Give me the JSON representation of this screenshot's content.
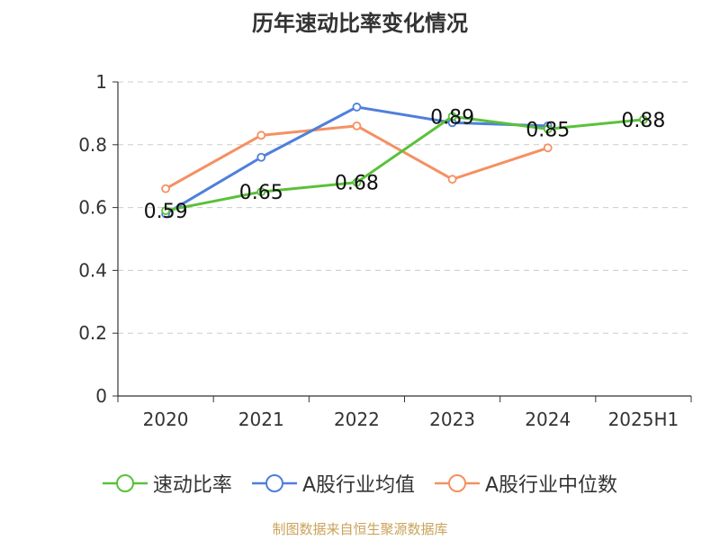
{
  "chart_data": {
    "type": "line",
    "title": "历年速动比率变化情况",
    "categories": [
      "2020",
      "2021",
      "2022",
      "2023",
      "2024",
      "2025H1"
    ],
    "ylim": [
      0,
      1
    ],
    "yticks": [
      0,
      0.2,
      0.4,
      0.6,
      0.8,
      1
    ],
    "ytick_labels": [
      "0",
      "0.2",
      "0.4",
      "0.6",
      "0.8",
      "1"
    ],
    "grid": true,
    "legend_position": "bottom",
    "series": [
      {
        "name": "速动比率",
        "color": "#5ac13a",
        "values": [
          0.59,
          0.65,
          0.68,
          0.89,
          0.85,
          0.88
        ],
        "data_labels": [
          "0.59",
          "0.65",
          "0.68",
          "0.89",
          "0.85",
          "0.88"
        ]
      },
      {
        "name": "A股行业均值",
        "color": "#4f7fdb",
        "values": [
          0.58,
          0.76,
          0.92,
          0.87,
          0.86,
          null
        ]
      },
      {
        "name": "A股行业中位数",
        "color": "#f59061",
        "values": [
          0.66,
          0.83,
          0.86,
          0.69,
          0.79,
          null
        ]
      }
    ]
  },
  "footer": {
    "source": "制图数据来自恒生聚源数据库"
  }
}
